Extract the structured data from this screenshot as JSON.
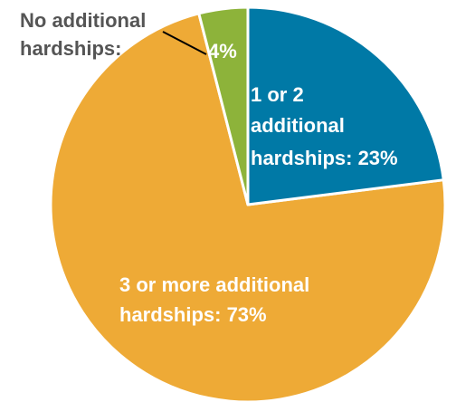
{
  "chart_data": {
    "type": "pie",
    "slices": [
      {
        "label_lines": [
          "No additional",
          "hardships:"
        ],
        "value_text": "4%",
        "value": 4,
        "color": "#8db33a"
      },
      {
        "label_lines": [
          "1 or 2",
          "additional",
          "hardships: 23%"
        ],
        "value": 23,
        "color": "#0079a6"
      },
      {
        "label_lines": [
          "3 or more additional",
          "hardships: 73%"
        ],
        "value": 73,
        "color": "#eeaa36"
      }
    ]
  }
}
